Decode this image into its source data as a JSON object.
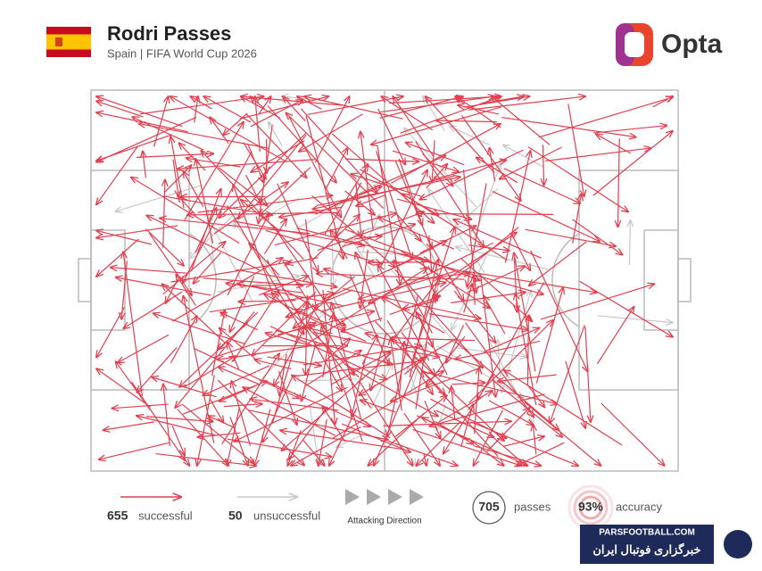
{
  "header": {
    "title": "Rodri Passes",
    "subtitle": "Spain | FIFA World Cup 2026",
    "brand": "Opta"
  },
  "legend": {
    "successful": {
      "count": "655",
      "label": "successful"
    },
    "unsuccessful": {
      "count": "50",
      "label": "unsuccessful"
    },
    "direction": "Attacking Direction",
    "passes": {
      "count": "705",
      "label": "passes"
    },
    "accuracy": {
      "value": "93%",
      "label": "accuracy"
    }
  },
  "watermark": {
    "site": "PARSFOOTBALL.COM",
    "name": "خبرگزاری فوتبال ایران"
  }
}
